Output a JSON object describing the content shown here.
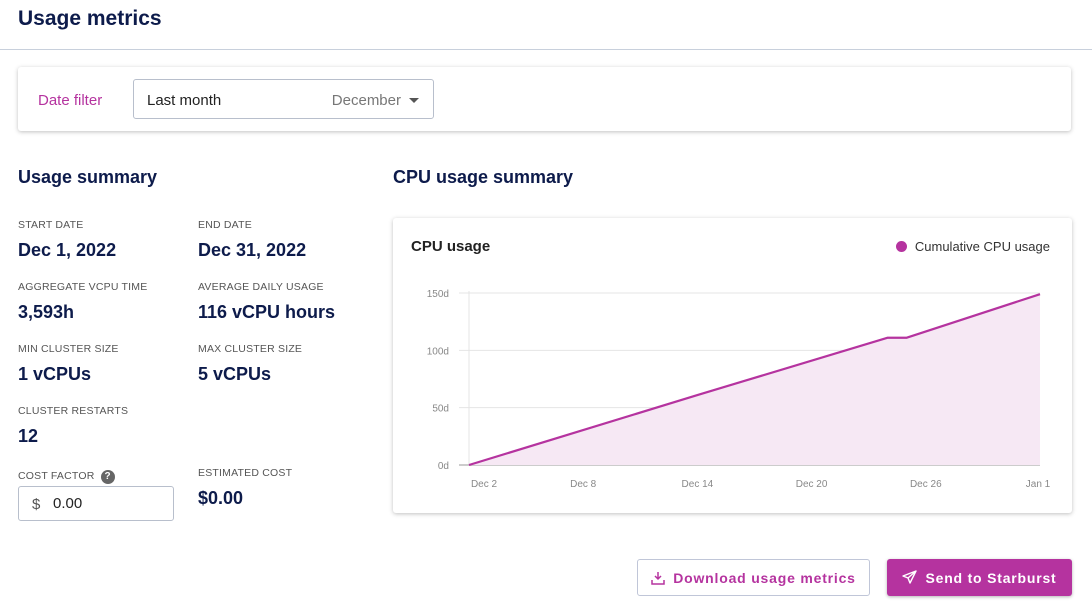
{
  "header": {
    "title": "Usage metrics"
  },
  "filter": {
    "label": "Date filter",
    "value": "Last month",
    "month": "December"
  },
  "summary": {
    "title": "Usage summary",
    "stats": [
      {
        "label": "START DATE",
        "value": "Dec 1, 2022"
      },
      {
        "label": "END DATE",
        "value": "Dec 31, 2022"
      },
      {
        "label": "AGGREGATE VCPU TIME",
        "value": "3,593h"
      },
      {
        "label": "AVERAGE DAILY USAGE",
        "value": "116 vCPU hours"
      },
      {
        "label": "MIN CLUSTER SIZE",
        "value": "1 vCPUs"
      },
      {
        "label": "MAX CLUSTER SIZE",
        "value": "5 vCPUs"
      },
      {
        "label": "CLUSTER RESTARTS",
        "value": "12"
      },
      {
        "label": "ESTIMATED COST",
        "value": "$0.00"
      }
    ],
    "cost_factor": {
      "label": "COST FACTOR",
      "currency": "$",
      "value": "0.00"
    }
  },
  "cpu": {
    "title": "CPU usage summary"
  },
  "chart_data": {
    "type": "area",
    "title": "CPU usage",
    "legend": "top-right",
    "series": [
      {
        "name": "Cumulative CPU usage",
        "color": "#b5339f",
        "x": [
          "Dec 2",
          "Dec 14",
          "Dec 24",
          "Dec 25",
          "Jan 1"
        ],
        "y": [
          0,
          61,
          111,
          111,
          149
        ]
      }
    ],
    "x_ticks": [
      "Dec 2",
      "Dec 8",
      "Dec 14",
      "Dec 20",
      "Dec 26",
      "Jan 1"
    ],
    "y_ticks": [
      "0d",
      "50d",
      "100d",
      "150d"
    ],
    "ylim": [
      0,
      150
    ],
    "grid": true
  },
  "actions": {
    "download": "Download usage metrics",
    "send": "Send to Starburst"
  }
}
